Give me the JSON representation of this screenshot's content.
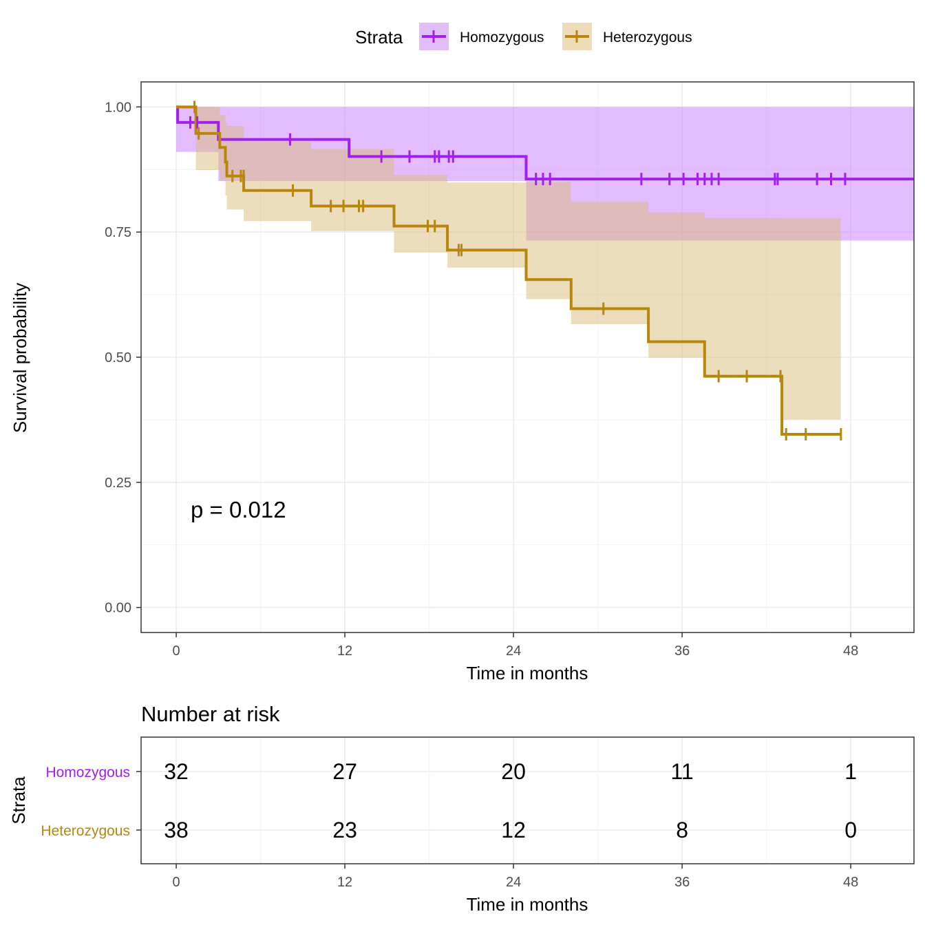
{
  "legend": {
    "title": "Strata",
    "items": [
      {
        "label": "Homozygous",
        "color": "#A020F0"
      },
      {
        "label": "Heterozygous",
        "color": "#B8860B"
      }
    ]
  },
  "annotation": "p = 0.012",
  "risk_table": {
    "title": "Number at risk",
    "ylabel": "Strata",
    "xlabel": "Time in months",
    "times": [
      0,
      12,
      24,
      36,
      48
    ],
    "rows": [
      {
        "label": "Homozygous",
        "color": "#A020F0",
        "values": [
          "32",
          "27",
          "20",
          "11",
          "1"
        ]
      },
      {
        "label": "Heterozygous",
        "color": "#B8860B",
        "values": [
          "38",
          "23",
          "12",
          "8",
          "0"
        ]
      }
    ]
  },
  "chart_data": {
    "type": "line",
    "subtype": "kaplan-meier step",
    "xlabel": "Time in months",
    "ylabel": "Survival probability",
    "xlim": [
      -2.5,
      52.5
    ],
    "ylim": [
      -0.05,
      1.05
    ],
    "xticks": [
      "0",
      "12",
      "24",
      "36",
      "48"
    ],
    "yticks": [
      "0.00",
      "0.25",
      "0.50",
      "0.75",
      "1.00"
    ],
    "grid": true,
    "legend_position": "top",
    "series": [
      {
        "name": "Homozygous",
        "color": "#A020F0",
        "fill": "#C77CFF",
        "steps": [
          [
            0,
            1.0
          ],
          [
            0.1,
            0.969
          ],
          [
            3.0,
            0.935
          ],
          [
            12.3,
            0.901
          ],
          [
            24.9,
            0.856
          ],
          [
            52.5,
            0.856
          ]
        ],
        "ci": [
          [
            0,
            0.91,
            1.0
          ],
          [
            3.0,
            0.852,
            1.0
          ],
          [
            12.3,
            0.852,
            1.0
          ],
          [
            24.9,
            0.733,
            1.0
          ],
          [
            52.5,
            0.733,
            1.0
          ]
        ],
        "censored": [
          [
            1.0,
            0.969
          ],
          [
            1.5,
            0.969
          ],
          [
            8.1,
            0.935
          ],
          [
            14.6,
            0.901
          ],
          [
            16.6,
            0.901
          ],
          [
            18.4,
            0.901
          ],
          [
            18.7,
            0.901
          ],
          [
            19.4,
            0.901
          ],
          [
            19.7,
            0.901
          ],
          [
            25.6,
            0.856
          ],
          [
            26.1,
            0.856
          ],
          [
            26.6,
            0.856
          ],
          [
            33.1,
            0.856
          ],
          [
            35.1,
            0.856
          ],
          [
            36.1,
            0.856
          ],
          [
            37.1,
            0.856
          ],
          [
            37.6,
            0.856
          ],
          [
            38.1,
            0.856
          ],
          [
            38.6,
            0.856
          ],
          [
            42.6,
            0.856
          ],
          [
            42.8,
            0.856
          ],
          [
            45.6,
            0.856
          ],
          [
            46.6,
            0.856
          ],
          [
            47.6,
            0.856
          ]
        ]
      },
      {
        "name": "Heterozygous",
        "color": "#B8860B",
        "fill": "#D9BC7A",
        "steps": [
          [
            0,
            1.0
          ],
          [
            1.4,
            0.947
          ],
          [
            3.1,
            0.919
          ],
          [
            3.5,
            0.89
          ],
          [
            3.6,
            0.862
          ],
          [
            4.8,
            0.833
          ],
          [
            9.6,
            0.802
          ],
          [
            15.5,
            0.762
          ],
          [
            19.3,
            0.714
          ],
          [
            24.9,
            0.655
          ],
          [
            28.1,
            0.597
          ],
          [
            33.6,
            0.531
          ],
          [
            37.6,
            0.462
          ],
          [
            43.1,
            0.346
          ],
          [
            47.3,
            0.346
          ]
        ],
        "ci": [
          [
            0,
            1.0,
            1.0
          ],
          [
            1.4,
            0.874,
            1.0
          ],
          [
            3.1,
            0.853,
            0.984
          ],
          [
            3.5,
            0.823,
            0.968
          ],
          [
            3.6,
            0.795,
            0.962
          ],
          [
            4.8,
            0.772,
            0.936
          ],
          [
            9.6,
            0.752,
            0.916
          ],
          [
            15.5,
            0.709,
            0.864
          ],
          [
            19.3,
            0.679,
            0.849
          ],
          [
            24.9,
            0.616,
            0.85
          ],
          [
            28.1,
            0.566,
            0.81
          ],
          [
            33.6,
            0.499,
            0.789
          ],
          [
            37.6,
            0.459,
            0.778
          ],
          [
            43.1,
            0.375,
            0.777
          ],
          [
            47.3,
            0.357,
            0.733
          ]
        ],
        "censored": [
          [
            1.3,
            1.0
          ],
          [
            1.6,
            0.947
          ],
          [
            4.0,
            0.862
          ],
          [
            4.6,
            0.862
          ],
          [
            4.8,
            0.862
          ],
          [
            8.3,
            0.833
          ],
          [
            11.0,
            0.802
          ],
          [
            11.9,
            0.802
          ],
          [
            13.0,
            0.802
          ],
          [
            13.3,
            0.802
          ],
          [
            17.9,
            0.762
          ],
          [
            18.4,
            0.762
          ],
          [
            20.1,
            0.714
          ],
          [
            20.3,
            0.714
          ],
          [
            30.4,
            0.597
          ],
          [
            38.6,
            0.462
          ],
          [
            40.6,
            0.462
          ],
          [
            43.0,
            0.462
          ],
          [
            43.4,
            0.346
          ],
          [
            44.8,
            0.346
          ],
          [
            47.3,
            0.346
          ]
        ]
      }
    ]
  }
}
